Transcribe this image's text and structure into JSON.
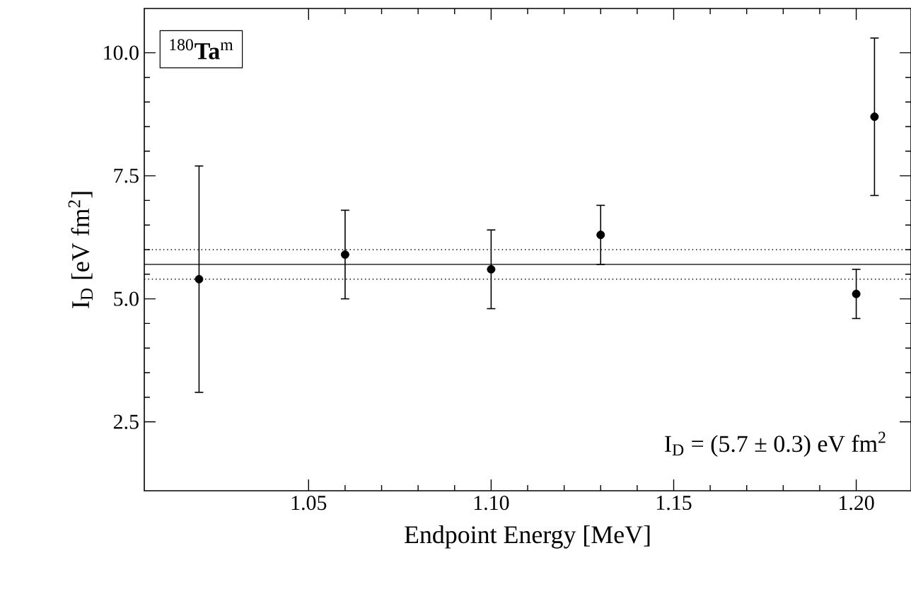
{
  "chart_data": {
    "type": "scatter",
    "xlabel": "Endpoint Energy [MeV]",
    "ylabel": "I$_{D}$ [eV fm$^{2}$]",
    "x": [
      1.02,
      1.06,
      1.1,
      1.13,
      1.2,
      1.205
    ],
    "series": [
      {
        "color": "#000000",
        "values": [
          5.4,
          5.9,
          5.6,
          6.3,
          5.1,
          8.7
        ],
        "errors": [
          [
            3.1,
            7.7
          ],
          [
            5.0,
            6.8
          ],
          [
            4.8,
            6.4
          ],
          [
            5.7,
            6.9
          ],
          [
            4.6,
            5.6
          ],
          [
            7.1,
            10.3
          ]
        ]
      }
    ],
    "marker": "circle",
    "xlim": [
      1.005,
      1.215
    ],
    "ylim": [
      1.1,
      10.9
    ],
    "xticks": [
      {
        "value": 1.05,
        "label": "1.05"
      },
      {
        "value": 1.1,
        "label": "1.10"
      },
      {
        "value": 1.15,
        "label": "1.15"
      },
      {
        "value": 1.2,
        "label": "1.20"
      }
    ],
    "yticks": [
      {
        "value": 2.5,
        "label": "2.5"
      },
      {
        "value": 5,
        "label": "5.0"
      },
      {
        "value": 7.5,
        "label": "7.5"
      },
      {
        "value": 10,
        "label": "10.0"
      }
    ],
    "ref_lines": [
      {
        "axis": "y",
        "value": 5.7,
        "line_style": "solid"
      },
      {
        "axis": "y",
        "value": 6.0,
        "line_style": "dotted"
      },
      {
        "axis": "y",
        "value": 5.4,
        "line_style": "dotted"
      }
    ],
    "annotations": [
      "$^{180}$**Ta**$^{m}$",
      "I$_{D}$ = (5.7 ± 0.3) eV fm$^{2}$"
    ]
  }
}
